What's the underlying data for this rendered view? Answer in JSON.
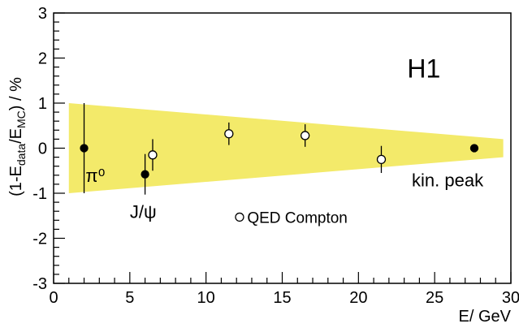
{
  "chart_data": {
    "type": "scatter",
    "title": "",
    "xlabel": "E/ GeV",
    "ylabel_parts": {
      "open": "(1-E",
      "sub1": "data",
      "mid": "/E",
      "sub2": "MC",
      "close": ") / %"
    },
    "xlim": [
      0,
      30
    ],
    "ylim": [
      -3,
      3
    ],
    "x_ticks": [
      0,
      5,
      10,
      15,
      20,
      25,
      30
    ],
    "y_ticks": [
      -3,
      -2,
      -1,
      0,
      1,
      2,
      3
    ],
    "x_tick_labels": [
      "0",
      "5",
      "10",
      "15",
      "20",
      "25",
      "30"
    ],
    "y_tick_labels": [
      "-3",
      "-2",
      "-1",
      "0",
      "1",
      "2",
      "3"
    ],
    "grid": false,
    "band": {
      "color": "#f3ea6a",
      "x": [
        1,
        29.5
      ],
      "upper": [
        1.0,
        0.2
      ],
      "lower": [
        -1.0,
        -0.2
      ]
    },
    "series": [
      {
        "marker": "filled-circle",
        "points": [
          {
            "x": 2.0,
            "y": 0.0,
            "yerr": 1.0
          },
          {
            "x": 6.0,
            "y": -0.58,
            "yerr": 0.45
          },
          {
            "x": 27.6,
            "y": 0.0,
            "yerr": 0.08
          }
        ]
      },
      {
        "name": "QED Compton",
        "marker": "open-circle",
        "points": [
          {
            "x": 6.5,
            "y": -0.15,
            "yerr": 0.35
          },
          {
            "x": 11.5,
            "y": 0.32,
            "yerr": 0.25
          },
          {
            "x": 16.5,
            "y": 0.28,
            "yerr": 0.25
          },
          {
            "x": 21.5,
            "y": -0.25,
            "yerr": 0.3
          }
        ]
      }
    ],
    "annotations": [
      {
        "text": "π⁰",
        "x": 2.1,
        "y": -0.75
      },
      {
        "text": "J/ψ",
        "x": 5.0,
        "y": -1.55
      },
      {
        "text": "kin. peak",
        "x": 23.5,
        "y": -0.85
      }
    ],
    "brand_label": "H1",
    "legend": {
      "label": "QED Compton",
      "placement": "bottom-center"
    }
  }
}
